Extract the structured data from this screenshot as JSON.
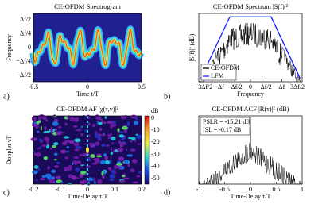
{
  "panels": [
    {
      "label": "a)",
      "title": "CE-OFDM Spectrogram",
      "xlabel": "Time t/T",
      "ylabel": "Frequency",
      "xticks": [
        "-0.5",
        "0",
        "0.5"
      ],
      "yticks": [
        "Δf/2",
        "Δf/4",
        "0",
        "−Δf/4",
        "−Δf/2"
      ]
    },
    {
      "label": "b)",
      "title": "CE-OFDM Spectrum |S(f)|²",
      "xlabel": "Frequency",
      "ylabel": "|S(f)|² (dB)",
      "xticks": [
        "−3Δf/2",
        "−Δf",
        "−Δf/2",
        "0",
        "Δf/2",
        "Δf",
        "3Δf/2"
      ],
      "yticks": [],
      "legend": [
        "CE-OFDM",
        "LFM"
      ]
    },
    {
      "label": "c)",
      "title": "CE-OFDM AF |χ(τ,ν)|²",
      "xlabel": "Time-Delay τ/T",
      "ylabel": "Doppler νT",
      "xticks": [
        "-0.2",
        "-0.1",
        "0",
        "0.1",
        "0.2"
      ],
      "yticks": [],
      "colorbar": {
        "label": "dB",
        "ticks": [
          "0",
          "-10",
          "-20",
          "-30",
          "-40",
          "-50"
        ]
      }
    },
    {
      "label": "d)",
      "title": "CE-OFDM ACF |R(τ)|² (dB)",
      "xlabel": "Time-Delay τ/T",
      "ylabel": "",
      "xticks": [
        "-1",
        "-0.5",
        "0",
        "0.5",
        "1"
      ],
      "yticks": [],
      "annotations": [
        "PSLR = -15.21 dB",
        "ISL = -0.17 dB"
      ]
    }
  ]
}
